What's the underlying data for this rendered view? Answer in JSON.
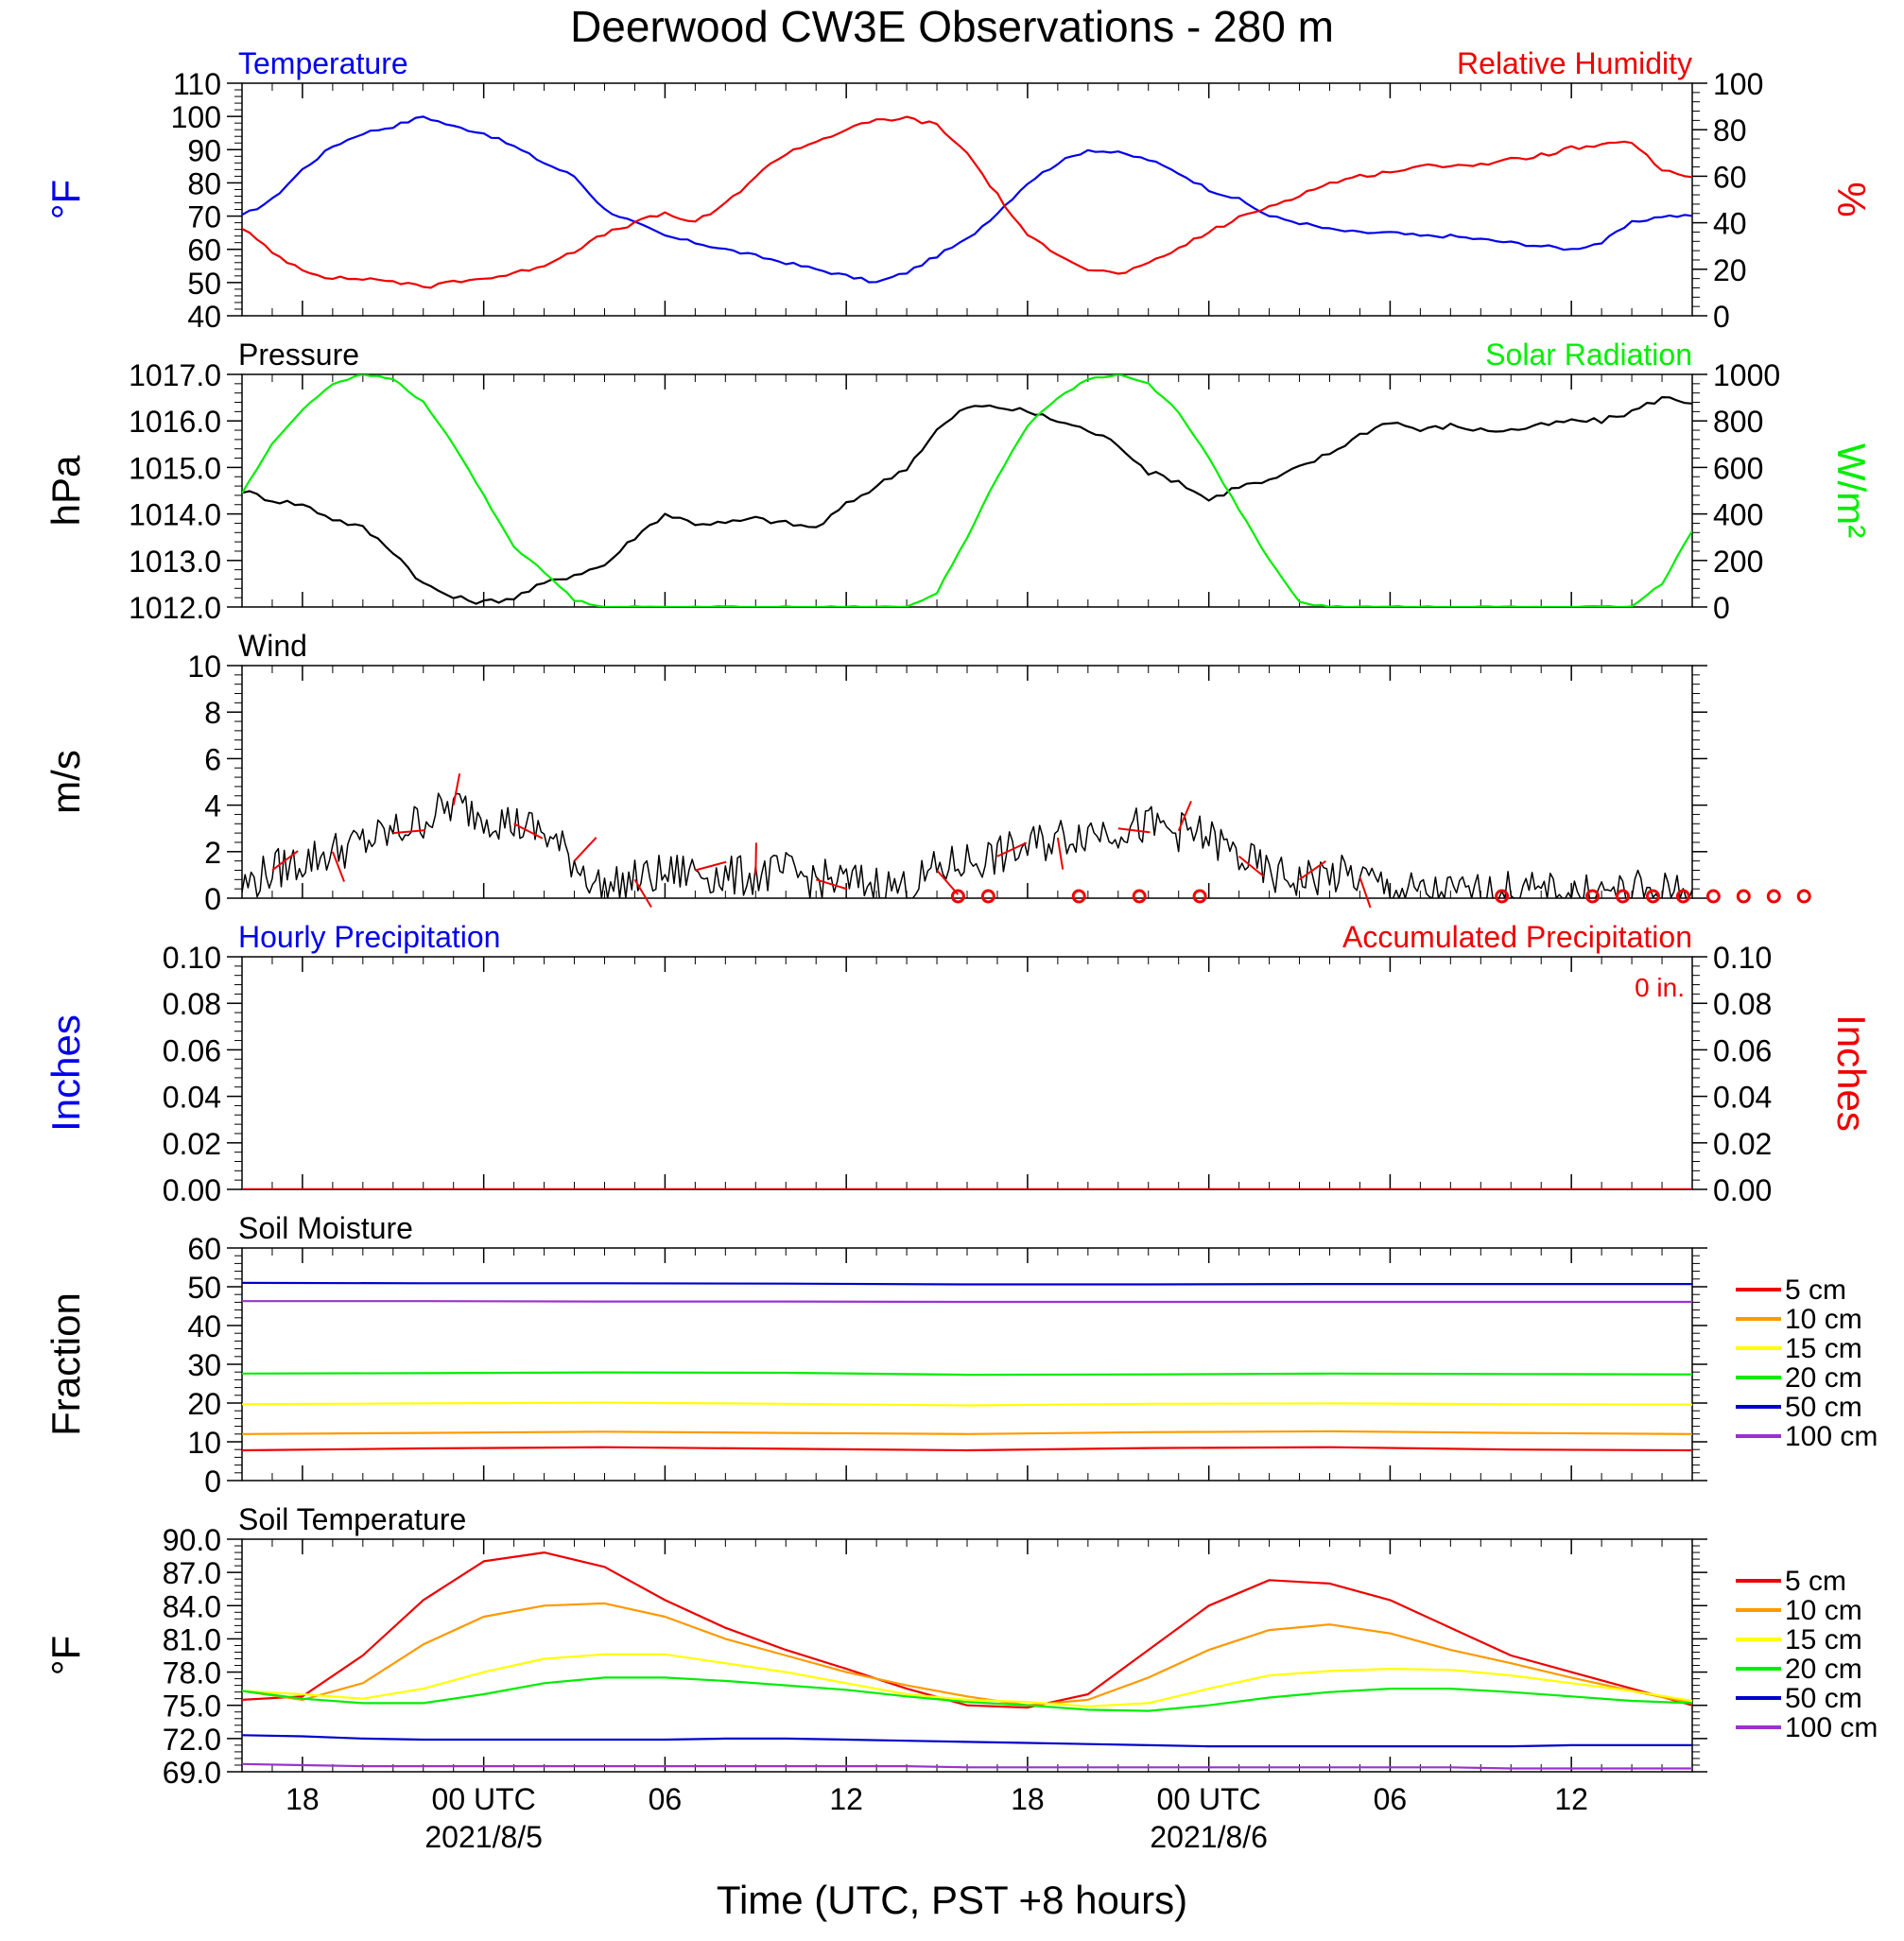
{
  "title": "Deerwood CW3E Observations - 280 m",
  "xaxis": {
    "label": "Time (UTC, PST +8 hours)",
    "ticks": [
      {
        "t": 18,
        "label": "18"
      },
      {
        "t": 24,
        "label": "00 UTC",
        "date": "2021/8/5"
      },
      {
        "t": 30,
        "label": "06"
      },
      {
        "t": 36,
        "label": "12"
      },
      {
        "t": 42,
        "label": "18"
      },
      {
        "t": 48,
        "label": "00 UTC",
        "date": "2021/8/6"
      },
      {
        "t": 54,
        "label": "06"
      },
      {
        "t": 60,
        "label": "12"
      }
    ]
  },
  "chart_data": [
    {
      "id": "temp_rh",
      "type": "line",
      "title_left": "Temperature",
      "title_right": "Relative Humidity",
      "ylabel_left": "°F",
      "ylabel_right": "%",
      "ylim_left": [
        40,
        110
      ],
      "yticks_left": [
        "110",
        "100",
        "90",
        "80",
        "70",
        "60",
        "50",
        "40"
      ],
      "ylim_right": [
        0,
        100
      ],
      "yticks_right": [
        "100",
        "80",
        "60",
        "40",
        "20",
        "0"
      ],
      "x": [
        16,
        17,
        18,
        19,
        20,
        21,
        22,
        23,
        24,
        25,
        26,
        27,
        28,
        29,
        30,
        31,
        32,
        33,
        34,
        35,
        36,
        37,
        38,
        39,
        40,
        41,
        42,
        43,
        44,
        45,
        46,
        47,
        48,
        49,
        50,
        51,
        52,
        53,
        54,
        55,
        56,
        57,
        58,
        59,
        60,
        61,
        62,
        63,
        64
      ],
      "series": [
        {
          "name": "Temperature",
          "axis": "left",
          "color": "#0000ee",
          "values": [
            70,
            75,
            84,
            91,
            95,
            97,
            100,
            97,
            95,
            91,
            86,
            82,
            72,
            68,
            64,
            62,
            60,
            58,
            56,
            54,
            52,
            50,
            53,
            58,
            63,
            71,
            80,
            86,
            90,
            89,
            87,
            83,
            78,
            75,
            70,
            68,
            66,
            65,
            65,
            64,
            64,
            63,
            62,
            61,
            60,
            62,
            68,
            70,
            70
          ]
        },
        {
          "name": "Relative Humidity",
          "axis": "right",
          "color": "#ee0000",
          "values": [
            38,
            27,
            20,
            16,
            16,
            15,
            12,
            15,
            16,
            18,
            22,
            28,
            35,
            40,
            44,
            40,
            48,
            60,
            70,
            75,
            80,
            84,
            85,
            82,
            70,
            52,
            34,
            27,
            20,
            18,
            22,
            29,
            36,
            42,
            47,
            52,
            57,
            60,
            62,
            64,
            65,
            65,
            67,
            69,
            72,
            73,
            75,
            62,
            60
          ]
        }
      ]
    },
    {
      "id": "press_solar",
      "type": "line",
      "title_left": "Pressure",
      "title_right": "Solar Radiation",
      "ylabel_left": "hPa",
      "ylabel_right": "W/m²",
      "ylim_left": [
        1012.0,
        1017.0
      ],
      "yticks_left": [
        "1017.0",
        "1016.0",
        "1015.0",
        "1014.0",
        "1013.0",
        "1012.0"
      ],
      "ylim_right": [
        0,
        1000
      ],
      "yticks_right": [
        "1000",
        "800",
        "600",
        "400",
        "200",
        "0"
      ],
      "x": [
        16,
        17,
        18,
        19,
        20,
        21,
        22,
        23,
        24,
        25,
        26,
        27,
        28,
        29,
        30,
        31,
        32,
        33,
        34,
        35,
        36,
        37,
        38,
        39,
        40,
        41,
        42,
        43,
        44,
        45,
        46,
        47,
        48,
        49,
        50,
        51,
        52,
        53,
        54,
        55,
        56,
        57,
        58,
        59,
        60,
        61,
        62,
        63,
        64
      ],
      "series": [
        {
          "name": "Pressure",
          "axis": "left",
          "color": "#000000",
          "values": [
            1014.5,
            1014.3,
            1014.2,
            1013.9,
            1013.7,
            1013.2,
            1012.5,
            1012.2,
            1012.1,
            1012.2,
            1012.5,
            1012.7,
            1012.9,
            1013.5,
            1014.0,
            1013.8,
            1013.8,
            1013.9,
            1013.8,
            1013.7,
            1014.2,
            1014.6,
            1015.0,
            1015.8,
            1016.3,
            1016.3,
            1016.2,
            1016.0,
            1015.8,
            1015.5,
            1014.9,
            1014.7,
            1014.3,
            1014.6,
            1014.7,
            1015.0,
            1015.3,
            1015.7,
            1016.0,
            1015.8,
            1015.9,
            1015.8,
            1015.8,
            1015.9,
            1016.0,
            1016.0,
            1016.2,
            1016.5,
            1016.4
          ]
        },
        {
          "name": "Solar Radiation",
          "axis": "right",
          "color": "#00ee00",
          "values": [
            490,
            700,
            850,
            960,
            1000,
            980,
            880,
            700,
            480,
            260,
            150,
            30,
            0,
            0,
            0,
            0,
            0,
            0,
            0,
            0,
            0,
            0,
            0,
            60,
            300,
            560,
            780,
            900,
            980,
            1000,
            960,
            840,
            640,
            420,
            200,
            20,
            0,
            0,
            0,
            0,
            0,
            0,
            0,
            0,
            0,
            0,
            0,
            100,
            330
          ]
        }
      ]
    },
    {
      "id": "wind",
      "type": "line",
      "title_left": "Wind",
      "ylabel_left": "m/s",
      "ylim_left": [
        0,
        10
      ],
      "yticks_left": [
        "10",
        "8",
        "6",
        "4",
        "2",
        "0"
      ],
      "x": [
        16,
        17,
        18,
        19,
        20,
        21,
        22,
        23,
        24,
        25,
        26,
        27,
        28,
        29,
        30,
        31,
        32,
        33,
        34,
        35,
        36,
        37,
        38,
        39,
        40,
        41,
        42,
        43,
        44,
        45,
        46,
        47,
        48,
        49,
        50,
        51,
        52,
        53,
        54,
        55,
        56,
        57,
        58,
        59,
        60,
        61,
        62,
        63,
        64
      ],
      "series": [
        {
          "name": "Wind",
          "axis": "left",
          "color": "#000000",
          "values": [
            0.5,
            1.2,
            1.6,
            2.0,
            2.4,
            2.8,
            3.4,
            4.0,
            3.6,
            3.2,
            2.8,
            1.6,
            0.3,
            0.8,
            1.0,
            1.2,
            0.9,
            1.0,
            1.1,
            0.8,
            0.7,
            0.6,
            0.4,
            1.2,
            1.6,
            1.8,
            2.2,
            2.6,
            2.9,
            3.0,
            3.1,
            2.9,
            2.6,
            1.8,
            1.0,
            0.8,
            1.0,
            0.9,
            0.4,
            0.2,
            0.2,
            0.2,
            0.3,
            0.2,
            0.2,
            0.2,
            0.3,
            0.3,
            0.2
          ]
        }
      ],
      "barb_color": "#ee0000",
      "calm_circles_t": [
        40,
        41,
        44,
        46,
        48,
        58,
        61,
        62,
        63,
        64,
        65,
        66,
        67,
        68
      ]
    },
    {
      "id": "precip",
      "type": "line",
      "title_left": "Hourly Precipitation",
      "title_right": "Accumulated Precipitation",
      "annotation": "0 in.",
      "ylabel_left": "Inches",
      "ylabel_right": "Inches",
      "ylim_left": [
        0,
        0.1
      ],
      "yticks_left": [
        "0.10",
        "0.08",
        "0.06",
        "0.04",
        "0.02",
        "0.00"
      ],
      "ylim_right": [
        0,
        0.1
      ],
      "yticks_right": [
        "0.10",
        "0.08",
        "0.06",
        "0.04",
        "0.02",
        "0.00"
      ],
      "x": [
        16,
        64
      ],
      "series": [
        {
          "name": "Hourly Precipitation",
          "axis": "left",
          "color": "#0000ee",
          "values": [
            0,
            0
          ]
        },
        {
          "name": "Accumulated Precipitation",
          "axis": "right",
          "color": "#ee0000",
          "values": [
            0,
            0
          ]
        }
      ]
    },
    {
      "id": "soil_moist",
      "type": "line",
      "title_left": "Soil Moisture",
      "ylabel_left": "Fraction",
      "ylim_left": [
        0,
        60
      ],
      "yticks_left": [
        "60",
        "50",
        "40",
        "30",
        "20",
        "10",
        "0"
      ],
      "x": [
        16,
        22,
        28,
        34,
        40,
        46,
        52,
        58,
        64
      ],
      "series": [
        {
          "name": "5 cm",
          "color": "#ee0000",
          "values": [
            7.8,
            8.3,
            8.6,
            8.2,
            7.8,
            8.4,
            8.6,
            8.0,
            7.8
          ]
        },
        {
          "name": "10 cm",
          "color": "#ff9900",
          "values": [
            12.0,
            12.3,
            12.6,
            12.3,
            12.0,
            12.5,
            12.7,
            12.3,
            12.0
          ]
        },
        {
          "name": "15 cm",
          "color": "#ffff00",
          "values": [
            19.7,
            19.9,
            20.1,
            19.8,
            19.4,
            19.8,
            19.9,
            19.7,
            19.6
          ]
        },
        {
          "name": "20 cm",
          "color": "#00ee00",
          "values": [
            27.6,
            27.7,
            27.9,
            27.8,
            27.3,
            27.4,
            27.6,
            27.5,
            27.4
          ]
        },
        {
          "name": "50 cm",
          "color": "#0000cc",
          "values": [
            51.0,
            50.9,
            50.9,
            50.8,
            50.6,
            50.6,
            50.7,
            50.7,
            50.7
          ]
        },
        {
          "name": "100 cm",
          "color": "#9933cc",
          "values": [
            46.3,
            46.3,
            46.2,
            46.2,
            46.1,
            46.1,
            46.1,
            46.1,
            46.1
          ]
        }
      ]
    },
    {
      "id": "soil_temp",
      "type": "line",
      "title_left": "Soil Temperature",
      "ylabel_left": "°F",
      "ylim_left": [
        69.0,
        90.0
      ],
      "yticks_left": [
        "90.0",
        "87.0",
        "84.0",
        "81.0",
        "78.0",
        "75.0",
        "72.0",
        "69.0"
      ],
      "x": [
        16,
        18,
        20,
        22,
        24,
        26,
        28,
        30,
        32,
        34,
        36,
        38,
        40,
        42,
        44,
        46,
        48,
        50,
        52,
        54,
        56,
        58,
        60,
        62,
        64
      ],
      "series": [
        {
          "name": "5 cm",
          "color": "#ee0000",
          "values": [
            75.5,
            75.8,
            79.5,
            84.5,
            88.0,
            88.8,
            87.5,
            84.5,
            82.0,
            80.0,
            78.3,
            76.5,
            75.0,
            74.8,
            76.0,
            80.0,
            84.0,
            86.3,
            86.0,
            84.5,
            82.0,
            79.5,
            78.0,
            76.5,
            75.0
          ]
        },
        {
          "name": "10 cm",
          "color": "#ff9900",
          "values": [
            76.3,
            75.5,
            77.0,
            80.5,
            83.0,
            84.0,
            84.2,
            83.0,
            81.0,
            79.5,
            78.0,
            76.8,
            75.8,
            75.0,
            75.5,
            77.5,
            80.0,
            81.8,
            82.3,
            81.5,
            80.0,
            78.8,
            77.5,
            76.3,
            75.2
          ]
        },
        {
          "name": "15 cm",
          "color": "#ffff00",
          "values": [
            76.3,
            76.0,
            75.6,
            76.5,
            78.0,
            79.2,
            79.6,
            79.6,
            78.8,
            78.0,
            77.0,
            76.0,
            75.5,
            75.3,
            74.9,
            75.2,
            76.5,
            77.7,
            78.1,
            78.3,
            78.2,
            77.7,
            77.0,
            76.3,
            75.4
          ]
        },
        {
          "name": "20 cm",
          "color": "#00ee00",
          "values": [
            76.3,
            75.6,
            75.2,
            75.2,
            76.0,
            77.0,
            77.5,
            77.5,
            77.2,
            76.8,
            76.4,
            75.8,
            75.3,
            75.0,
            74.6,
            74.5,
            75.0,
            75.7,
            76.2,
            76.5,
            76.5,
            76.2,
            75.8,
            75.4,
            75.2
          ]
        },
        {
          "name": "50 cm",
          "color": "#0000cc",
          "values": [
            72.3,
            72.2,
            72.0,
            71.9,
            71.9,
            71.9,
            71.9,
            71.9,
            72.0,
            72.0,
            71.9,
            71.8,
            71.7,
            71.6,
            71.5,
            71.4,
            71.3,
            71.3,
            71.3,
            71.3,
            71.3,
            71.3,
            71.4,
            71.4,
            71.4
          ]
        },
        {
          "name": "100 cm",
          "color": "#9933cc",
          "values": [
            69.7,
            69.6,
            69.5,
            69.5,
            69.5,
            69.5,
            69.5,
            69.5,
            69.5,
            69.5,
            69.5,
            69.5,
            69.4,
            69.4,
            69.4,
            69.4,
            69.4,
            69.4,
            69.4,
            69.4,
            69.4,
            69.3,
            69.3,
            69.3,
            69.3
          ]
        }
      ],
      "legend": [
        "5 cm",
        "10 cm",
        "15 cm",
        "20 cm",
        "50 cm",
        "100 cm"
      ]
    }
  ]
}
